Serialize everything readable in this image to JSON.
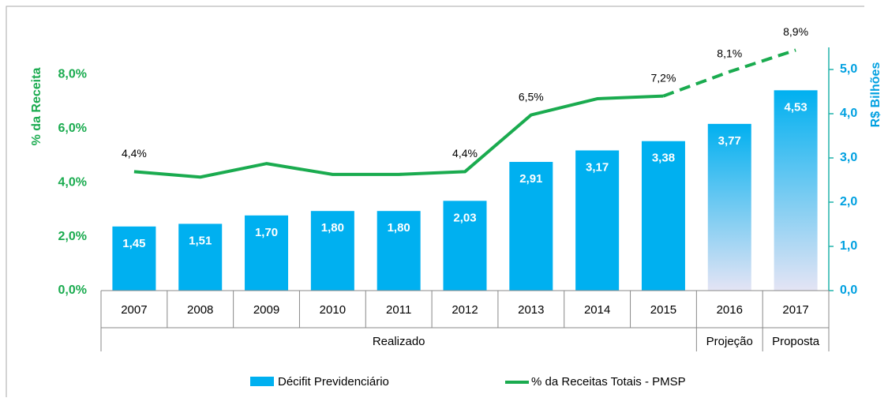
{
  "chart_data": {
    "type": "bar-line",
    "categories": [
      "2007",
      "2008",
      "2009",
      "2010",
      "2011",
      "2012",
      "2013",
      "2014",
      "2015",
      "2016",
      "2017"
    ],
    "groups": [
      {
        "label": "Realizado",
        "from": 0,
        "to": 8
      },
      {
        "label": "Projeção",
        "from": 9,
        "to": 9
      },
      {
        "label": "Proposta",
        "from": 10,
        "to": 10
      }
    ],
    "projected_from": 9,
    "series": [
      {
        "name": "Décifit Previdenciário",
        "type": "bar",
        "axis": "y2",
        "color": "#00b0f0",
        "projected_color": "#e4e4f4",
        "values": [
          1.45,
          1.51,
          1.7,
          1.8,
          1.8,
          2.03,
          2.91,
          3.17,
          3.38,
          3.77,
          4.53
        ],
        "value_labels": [
          "1,45",
          "1,51",
          "1,70",
          "1,80",
          "1,80",
          "2,03",
          "2,91",
          "3,17",
          "3,38",
          "3,77",
          "4,53"
        ]
      },
      {
        "name": "% da Receitas Totais - PMSP",
        "type": "line",
        "axis": "y",
        "color": "#1aab4f",
        "values": [
          4.4,
          4.2,
          4.7,
          4.3,
          4.3,
          4.4,
          6.5,
          7.1,
          7.2,
          8.1,
          8.9
        ],
        "value_labels": [
          "4,4%",
          null,
          null,
          null,
          null,
          "4,4%",
          "6,5%",
          null,
          "7,2%",
          "8,1%",
          "8,9%"
        ]
      }
    ],
    "ylabel": "% da Receita",
    "y2label": "R$ Bilhões",
    "ylim": [
      0,
      9
    ],
    "yticks": [
      {
        "value": 0,
        "label": "0,0%"
      },
      {
        "value": 2,
        "label": "2,0%"
      },
      {
        "value": 4,
        "label": "4,0%"
      },
      {
        "value": 6,
        "label": "6,0%"
      },
      {
        "value": 8,
        "label": "8,0%"
      }
    ],
    "y2lim": [
      0,
      5.5
    ],
    "y2ticks": [
      {
        "value": 0,
        "label": "0,0"
      },
      {
        "value": 1,
        "label": "1,0"
      },
      {
        "value": 2,
        "label": "2,0"
      },
      {
        "value": 3,
        "label": "3,0"
      },
      {
        "value": 4,
        "label": "4,0"
      },
      {
        "value": 5,
        "label": "5,0"
      }
    ],
    "legend": "bottom"
  }
}
